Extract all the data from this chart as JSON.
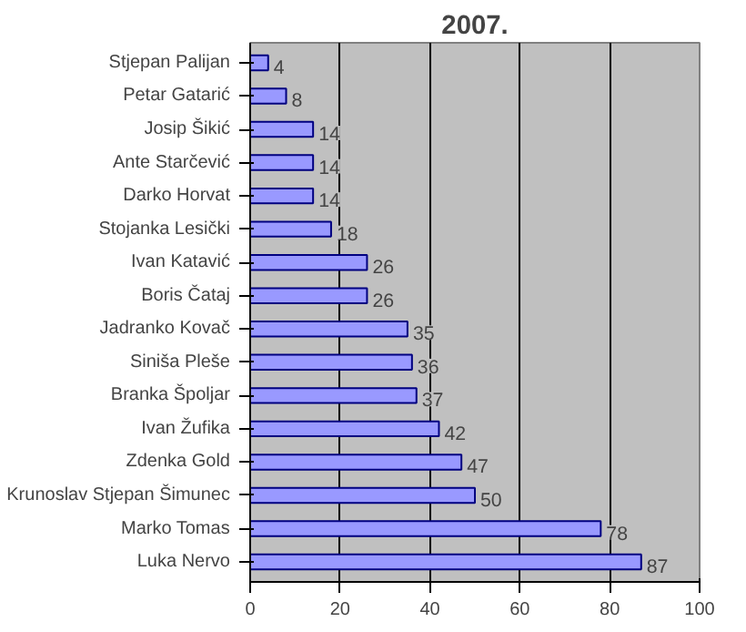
{
  "chart_data": {
    "type": "bar",
    "orientation": "horizontal",
    "title": "2007.",
    "categories": [
      "Stjepan Palijan",
      "Petar Gatarić",
      "Josip Šikić",
      "Ante Starčević",
      "Darko Horvat",
      "Stojanka Lesički",
      "Ivan Katavić",
      "Boris Čataj",
      "Jadranko Kovač",
      "Siniša Pleše",
      "Branka Špoljar",
      "Ivan Žufika",
      "Zdenka Gold",
      "Krunoslav Stjepan Šimunec",
      "Marko Tomas",
      "Luka Nervo"
    ],
    "values": [
      4,
      8,
      14,
      14,
      14,
      18,
      26,
      26,
      35,
      36,
      37,
      42,
      47,
      50,
      78,
      87
    ],
    "color": "#9999ff",
    "xlim": [
      0,
      100
    ],
    "xticks": [
      0,
      20,
      40,
      60,
      80,
      100
    ],
    "grid": "x",
    "data_labels": true
  }
}
